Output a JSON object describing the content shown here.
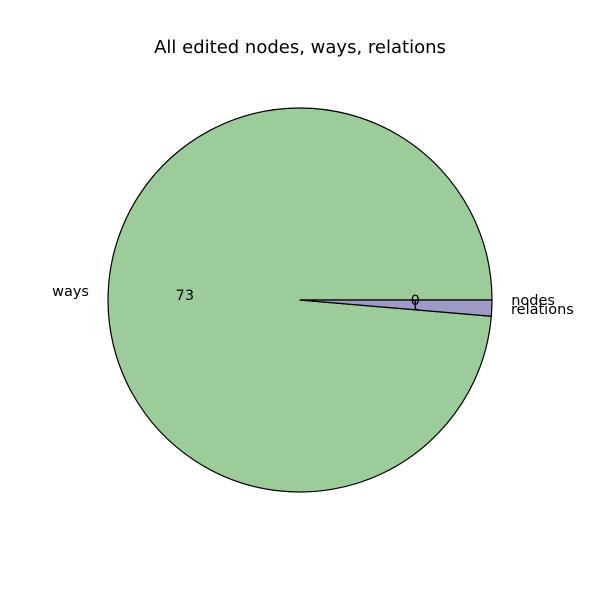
{
  "chart_data": {
    "type": "pie",
    "title": "All edited nodes, ways, relations",
    "slices": [
      {
        "label": "nodes",
        "value": 0,
        "display": "0",
        "color": "#9ecae1"
      },
      {
        "label": "ways",
        "value": 73,
        "display": "73",
        "color": "#9ccc9a"
      },
      {
        "label": "relations",
        "value": 1,
        "display": "1",
        "color": "#9e9ac8"
      }
    ],
    "start_angle_deg": 0,
    "direction": "counterclockwise",
    "edge_color": "#000000",
    "legend": "none"
  }
}
